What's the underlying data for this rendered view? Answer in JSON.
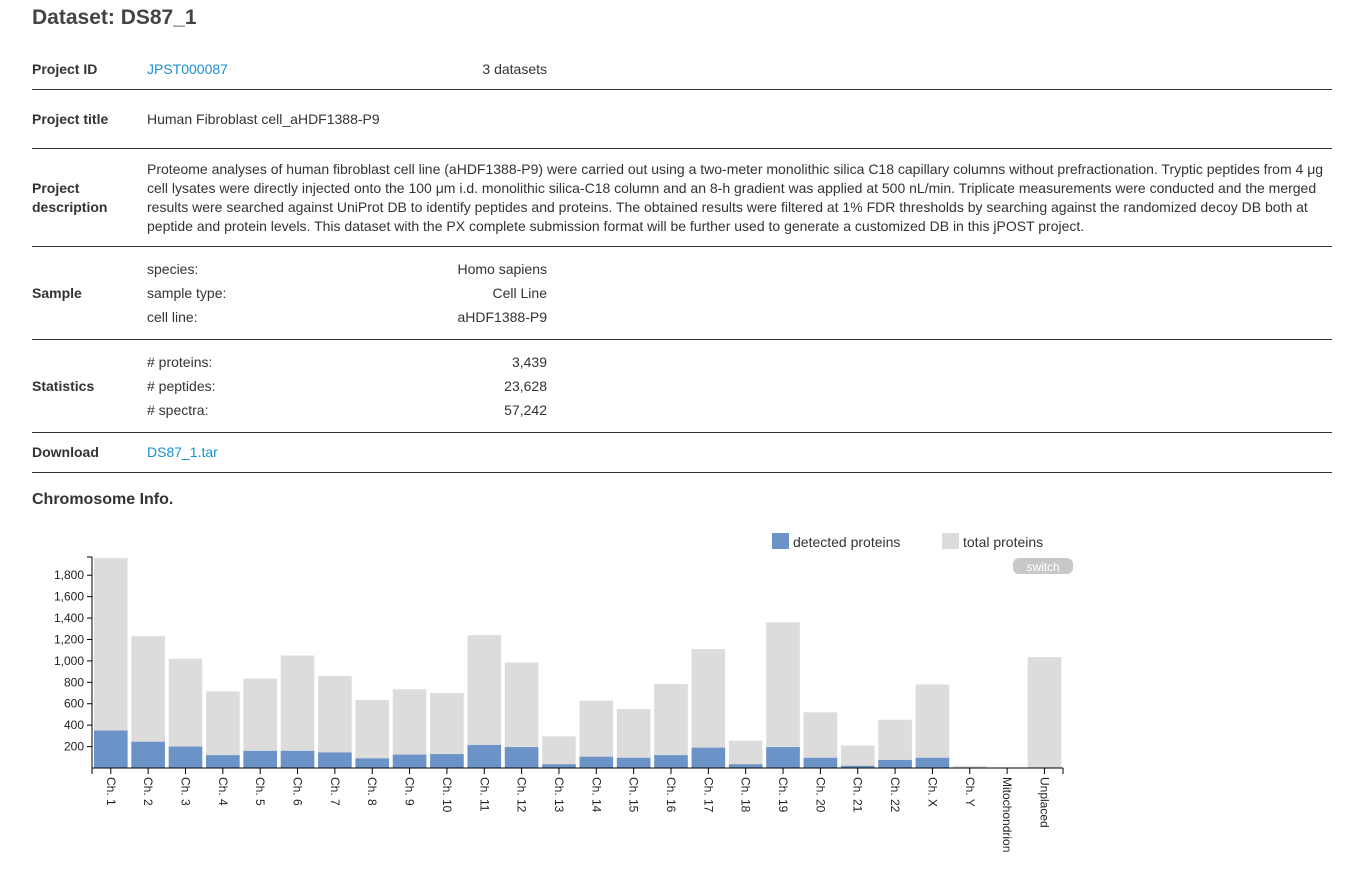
{
  "page": {
    "title": "Dataset: DS87_1"
  },
  "meta": {
    "project_id": {
      "label": "Project ID",
      "value": "JPST000087",
      "datasets": "3 datasets"
    },
    "project_title": {
      "label": "Project title",
      "value": "Human Fibroblast cell_aHDF1388-P9"
    },
    "project_description": {
      "label": "Project description",
      "value": "Proteome analyses of human fibroblast cell line (aHDF1388-P9) were carried out using a two-meter monolithic silica C18 capillary columns without prefractionation. Tryptic peptides from 4 μg cell lysates were directly injected onto the 100 μm i.d. monolithic silica-C18 column and an 8-h gradient was applied at 500 nL/min. Triplicate measurements were conducted and the merged results were searched against UniProt DB to identify peptides and proteins. The obtained results were filtered at 1% FDR thresholds by searching against the randomized decoy DB both at peptide and protein levels. This dataset with the PX complete submission format will be further used to generate a customized DB in this jPOST project."
    },
    "sample": {
      "label": "Sample",
      "items": [
        {
          "key": "species:",
          "value": "Homo sapiens"
        },
        {
          "key": "sample type:",
          "value": "Cell Line"
        },
        {
          "key": "cell line:",
          "value": "aHDF1388-P9"
        }
      ]
    },
    "statistics": {
      "label": "Statistics",
      "items": [
        {
          "key": "# proteins:",
          "value": "3,439"
        },
        {
          "key": "# peptides:",
          "value": "23,628"
        },
        {
          "key": "# spectra:",
          "value": "57,242"
        }
      ]
    },
    "download": {
      "label": "Download",
      "value": "DS87_1.tar"
    }
  },
  "chromosome": {
    "heading": "Chromosome Info.",
    "switch_label": "switch"
  },
  "chart_data": {
    "type": "bar",
    "categories": [
      "Ch. 1",
      "Ch. 2",
      "Ch. 3",
      "Ch. 4",
      "Ch. 5",
      "Ch. 6",
      "Ch. 7",
      "Ch. 8",
      "Ch. 9",
      "Ch. 10",
      "Ch. 11",
      "Ch. 12",
      "Ch. 13",
      "Ch. 14",
      "Ch. 15",
      "Ch. 16",
      "Ch. 17",
      "Ch. 18",
      "Ch. 19",
      "Ch. 20",
      "Ch. 21",
      "Ch. 22",
      "Ch. X",
      "Ch. Y",
      "Mitochondrion",
      "Unplaced"
    ],
    "series": [
      {
        "name": "total proteins",
        "color": "#dcdcdc",
        "values": [
          1960,
          1230,
          1020,
          715,
          835,
          1050,
          860,
          635,
          735,
          700,
          1240,
          985,
          295,
          630,
          550,
          785,
          1110,
          255,
          1360,
          520,
          210,
          450,
          780,
          20,
          0,
          1035
        ]
      },
      {
        "name": "detected proteins",
        "color": "#6b93c7",
        "values": [
          350,
          245,
          200,
          120,
          160,
          160,
          145,
          90,
          125,
          130,
          215,
          195,
          35,
          105,
          95,
          120,
          190,
          35,
          195,
          95,
          20,
          75,
          95,
          0,
          0,
          0
        ]
      }
    ],
    "ylim": [
      0,
      1970
    ],
    "yticks": [
      200,
      400,
      600,
      800,
      1000,
      1200,
      1400,
      1600,
      1800
    ],
    "ytick_labels": [
      "200",
      "400",
      "600",
      "800",
      "1,000",
      "1,200",
      "1,400",
      "1,600",
      "1,800"
    ],
    "stacked": false,
    "legend_position": "top-right"
  }
}
